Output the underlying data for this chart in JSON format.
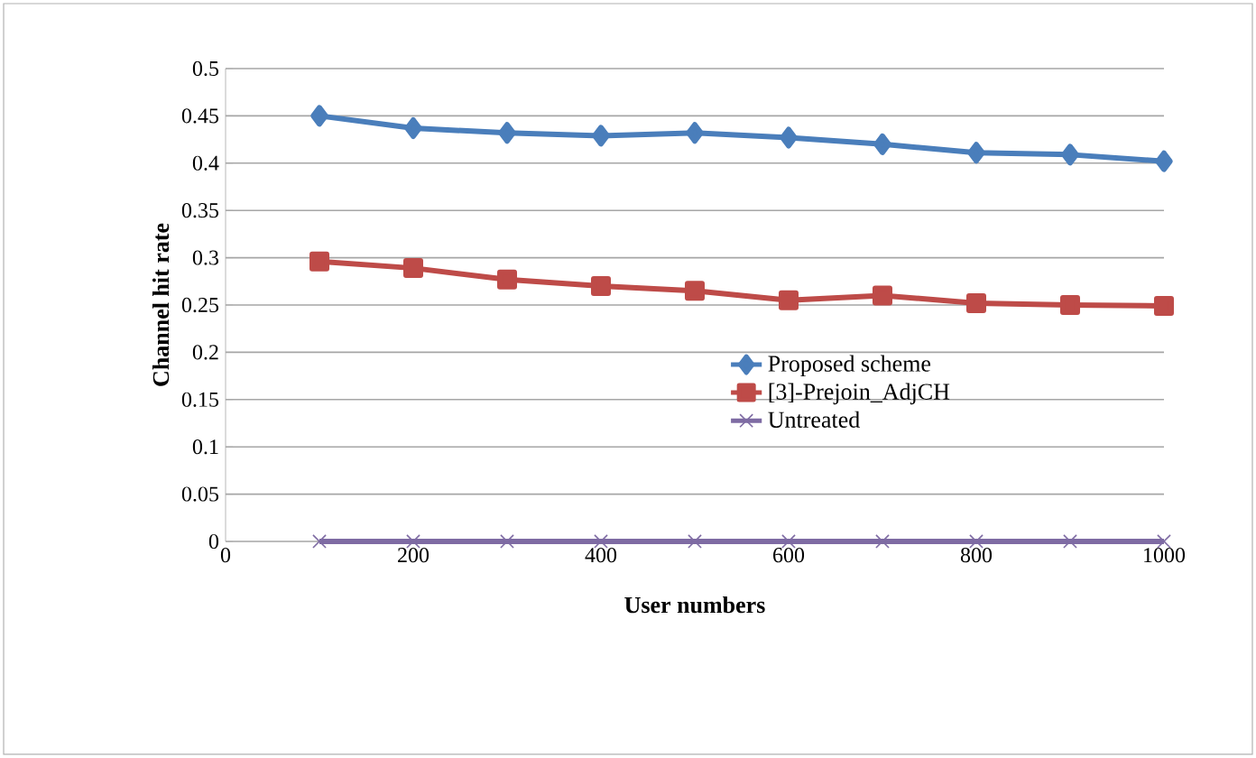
{
  "chart_data": {
    "type": "line",
    "xlabel": "User numbers",
    "ylabel": "Channel hit rate",
    "x": [
      100,
      200,
      300,
      400,
      500,
      600,
      700,
      800,
      900,
      1000
    ],
    "xlim": [
      0,
      1000
    ],
    "xticks": [
      0,
      200,
      400,
      600,
      800,
      1000
    ],
    "ylim": [
      0,
      0.5
    ],
    "yticks": [
      0,
      0.05,
      0.1,
      0.15,
      0.2,
      0.25,
      0.3,
      0.35,
      0.4,
      0.45,
      0.5
    ],
    "grid": "y",
    "legend": "right",
    "series": [
      {
        "name": "Proposed scheme",
        "color": "#4a7ebb",
        "marker": "diamond",
        "values": [
          0.45,
          0.437,
          0.432,
          0.429,
          0.432,
          0.427,
          0.42,
          0.411,
          0.409,
          0.402
        ]
      },
      {
        "name": "[3]-Prejoin_AdjCH",
        "color": "#be4b48",
        "marker": "square",
        "values": [
          0.296,
          0.289,
          0.277,
          0.27,
          0.265,
          0.255,
          0.26,
          0.252,
          0.25,
          0.249
        ]
      },
      {
        "name": "Untreated",
        "color": "#7e6ba3",
        "marker": "cross",
        "values": [
          0,
          0,
          0,
          0,
          0,
          0,
          0,
          0,
          0,
          0
        ]
      }
    ]
  }
}
